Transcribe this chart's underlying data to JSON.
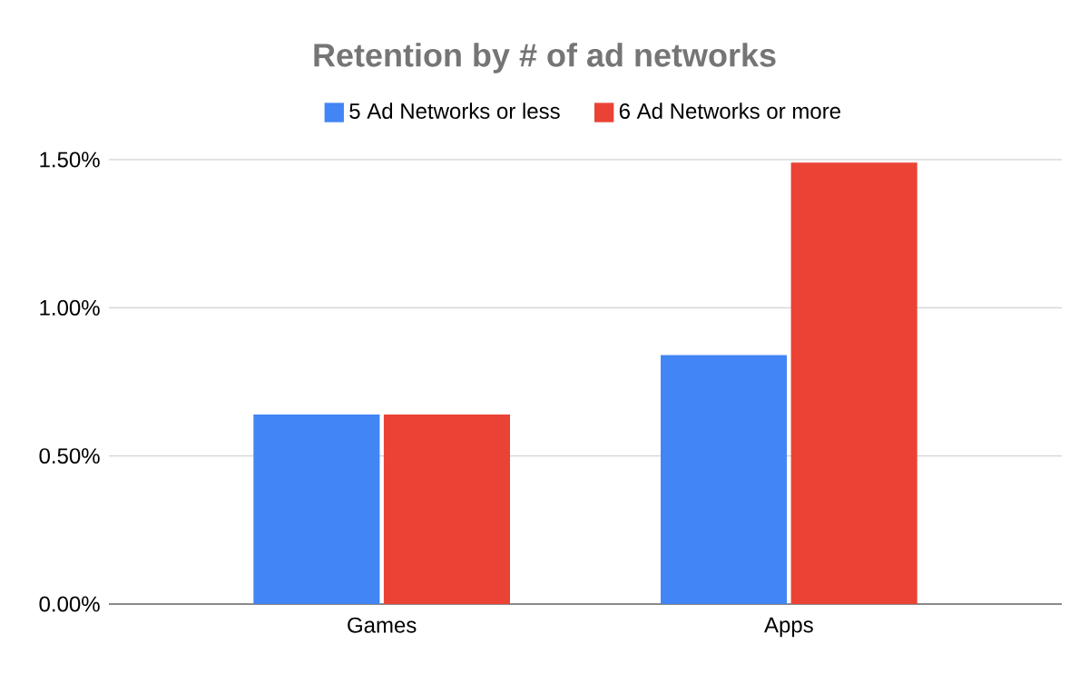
{
  "chart_data": {
    "type": "bar",
    "title": "Retention by # of ad networks",
    "categories": [
      "Games",
      "Apps"
    ],
    "series": [
      {
        "name": "5 Ad Networks or less",
        "color": "#4285f4",
        "values": [
          0.64,
          0.84
        ]
      },
      {
        "name": "6 Ad Networks or more",
        "color": "#ea4335",
        "values": [
          0.64,
          1.49
        ]
      }
    ],
    "ylim": [
      0,
      1.5
    ],
    "yticks": [
      {
        "value": 0,
        "label": "0.00%"
      },
      {
        "value": 0.5,
        "label": "0.50%"
      },
      {
        "value": 1,
        "label": "1.00%"
      },
      {
        "value": 1.5,
        "label": "1.50%"
      }
    ],
    "grid": "y",
    "legend": "top"
  }
}
